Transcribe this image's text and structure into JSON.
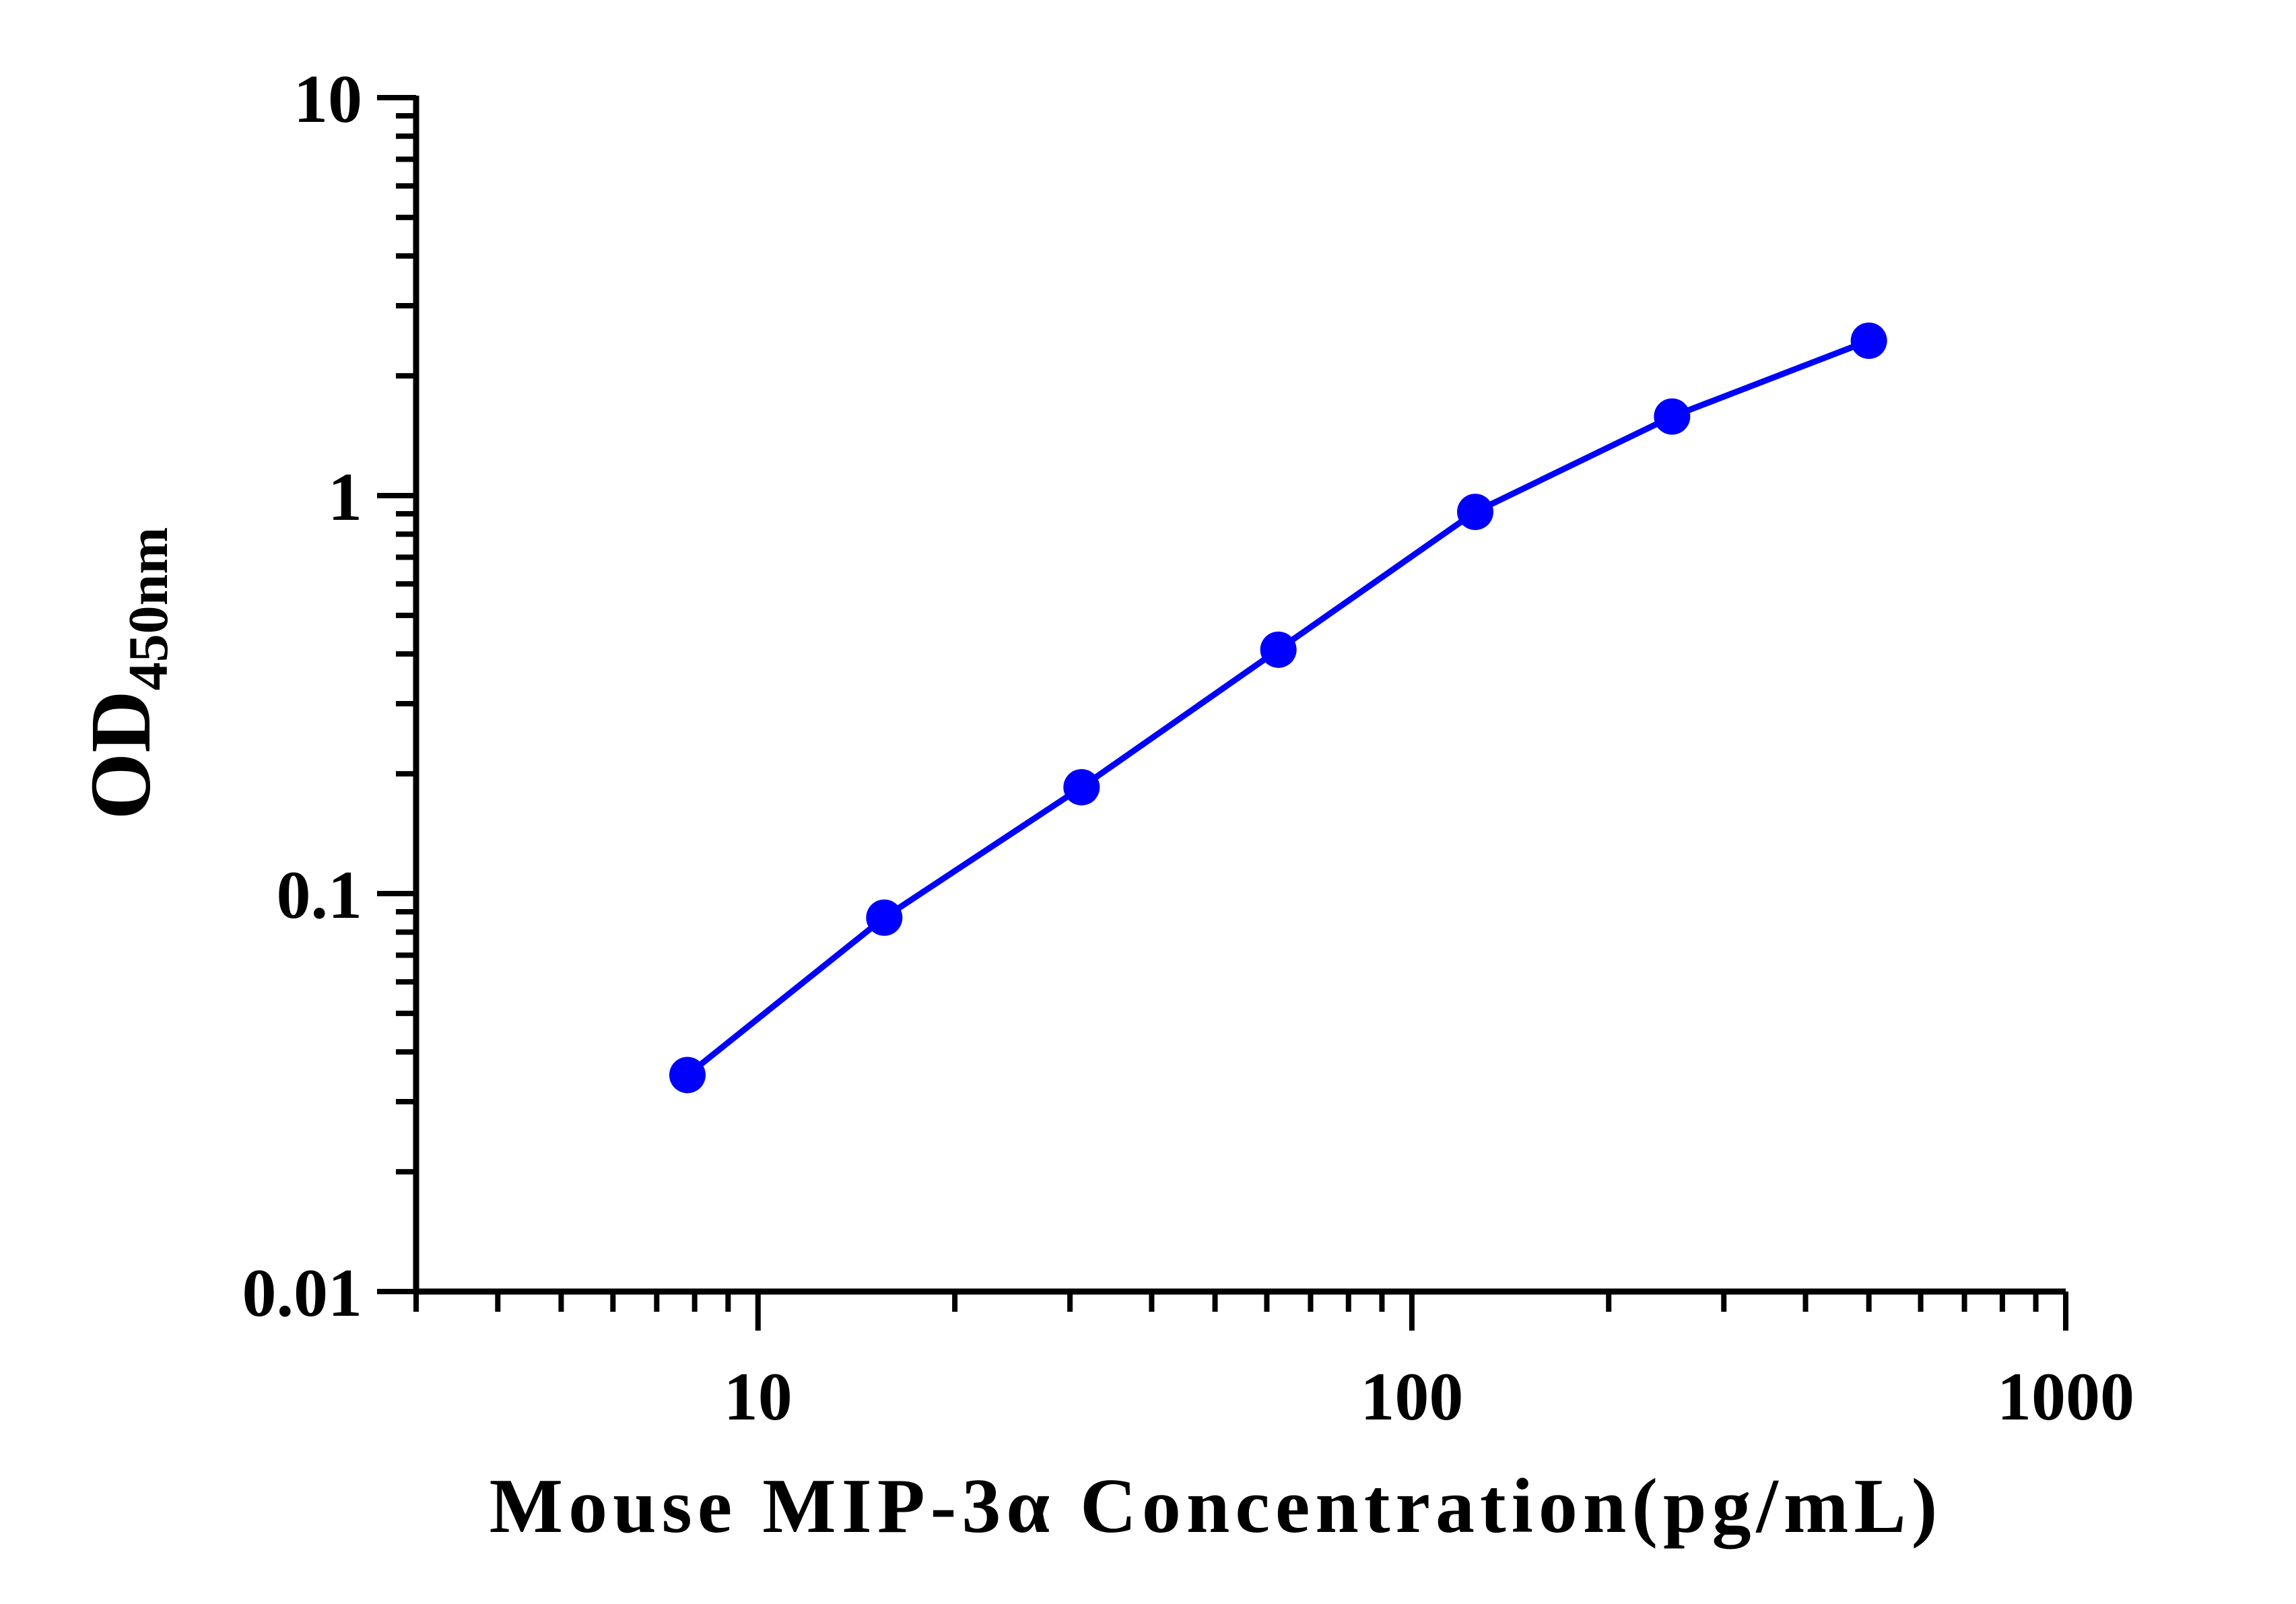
{
  "chart_data": {
    "type": "line",
    "title": "",
    "xlabel": "Mouse MIP-3α Concentration(pg/mL)",
    "ylabel": "OD",
    "ylabel_subscript": "450nm",
    "xscale": "log",
    "yscale": "log",
    "xlim": [
      3,
      1000
    ],
    "ylim": [
      0.01,
      10
    ],
    "x_ticks": [
      "10",
      "100",
      "1000"
    ],
    "y_ticks": [
      "0.01",
      "0.1",
      "1",
      "10"
    ],
    "grid": false,
    "legend": "none",
    "series": [
      {
        "color": "#0000ff",
        "x": [
          7.8,
          15.6,
          31.25,
          62.5,
          125,
          250,
          500
        ],
        "y": [
          0.035,
          0.087,
          0.185,
          0.41,
          0.91,
          1.58,
          2.45
        ]
      }
    ]
  }
}
